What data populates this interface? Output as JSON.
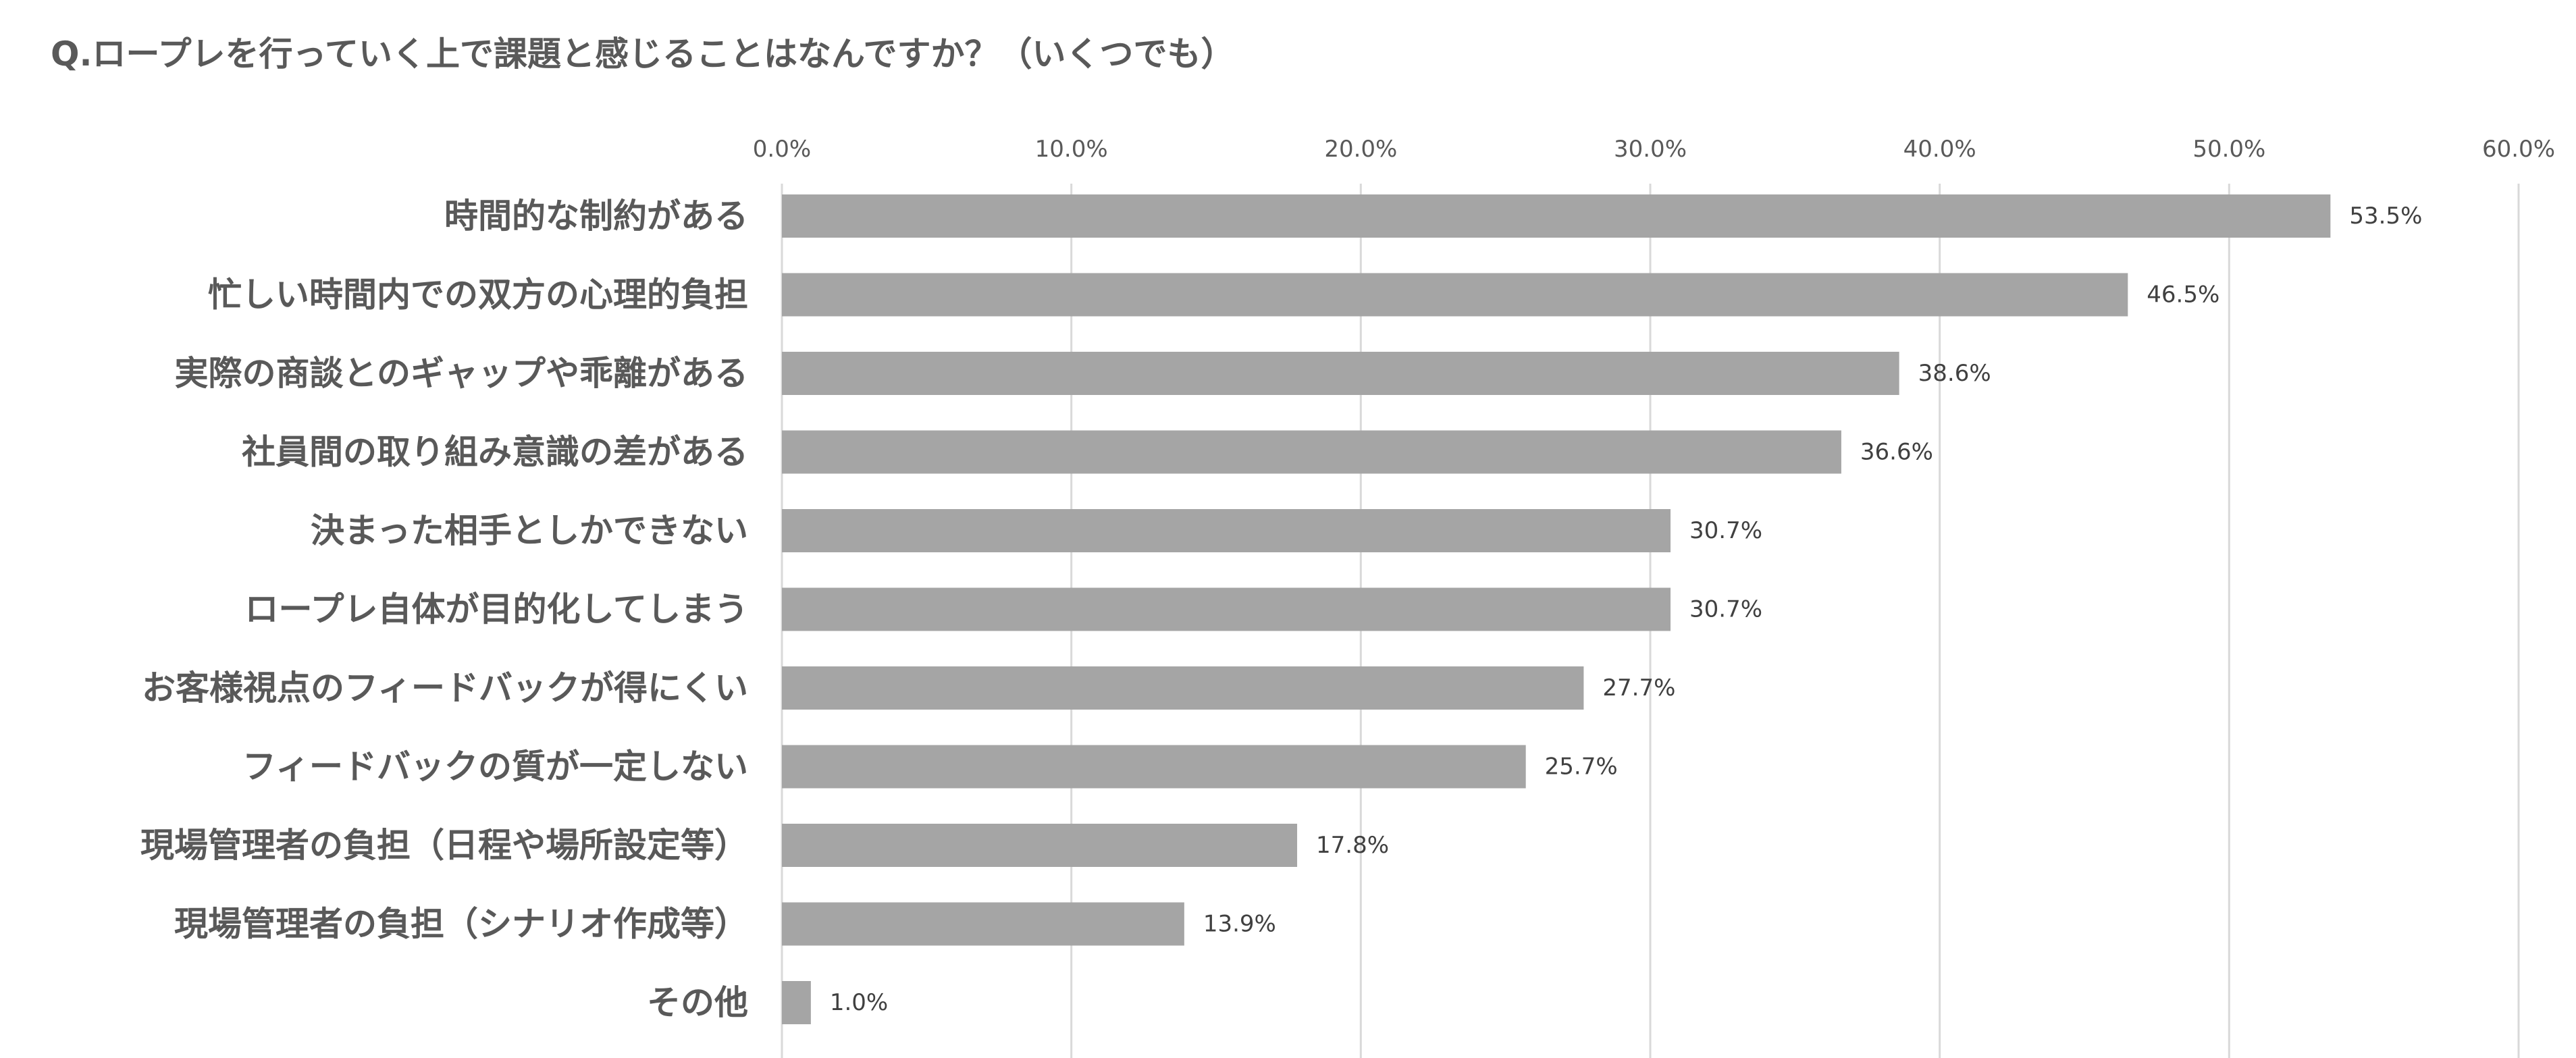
{
  "chart_data": {
    "type": "bar",
    "orientation": "horizontal",
    "title": "Q.ロープレを行っていく上で課題と感じることはなんですか？（いくつでも）",
    "xlabel": "",
    "ylabel": "",
    "xlim": [
      0,
      60
    ],
    "x_ticks": [
      "0.0%",
      "10.0%",
      "20.0%",
      "30.0%",
      "40.0%",
      "50.0%",
      "60.0%"
    ],
    "x_tick_values": [
      0,
      10,
      20,
      30,
      40,
      50,
      60
    ],
    "x_axis_position": "top",
    "grid": true,
    "legend": "none",
    "categories": [
      "時間的な制約がある",
      "忙しい時間内での双方の心理的負担",
      "実際の商談とのギャップや乖離がある",
      "社員間の取り組み意識の差がある",
      "決まった相手としかできない",
      "ロープレ自体が目的化してしまう",
      "お客様視点のフィードバックが得にくい",
      "フィードバックの質が一定しない",
      "現場管理者の負担（日程や場所設定等）",
      "現場管理者の負担（シナリオ作成等）",
      "その他"
    ],
    "values": [
      53.5,
      46.5,
      38.6,
      36.6,
      30.7,
      30.7,
      27.7,
      25.7,
      17.8,
      13.9,
      1.0
    ],
    "data_labels": [
      "53.5%",
      "46.5%",
      "38.6%",
      "36.6%",
      "30.7%",
      "30.7%",
      "27.7%",
      "25.7%",
      "17.8%",
      "13.9%",
      "1.0%"
    ],
    "colors": {
      "bar": "#a5a5a5",
      "grid": "#d9d9d9",
      "text": "#595959",
      "data_label": "#404040"
    }
  }
}
